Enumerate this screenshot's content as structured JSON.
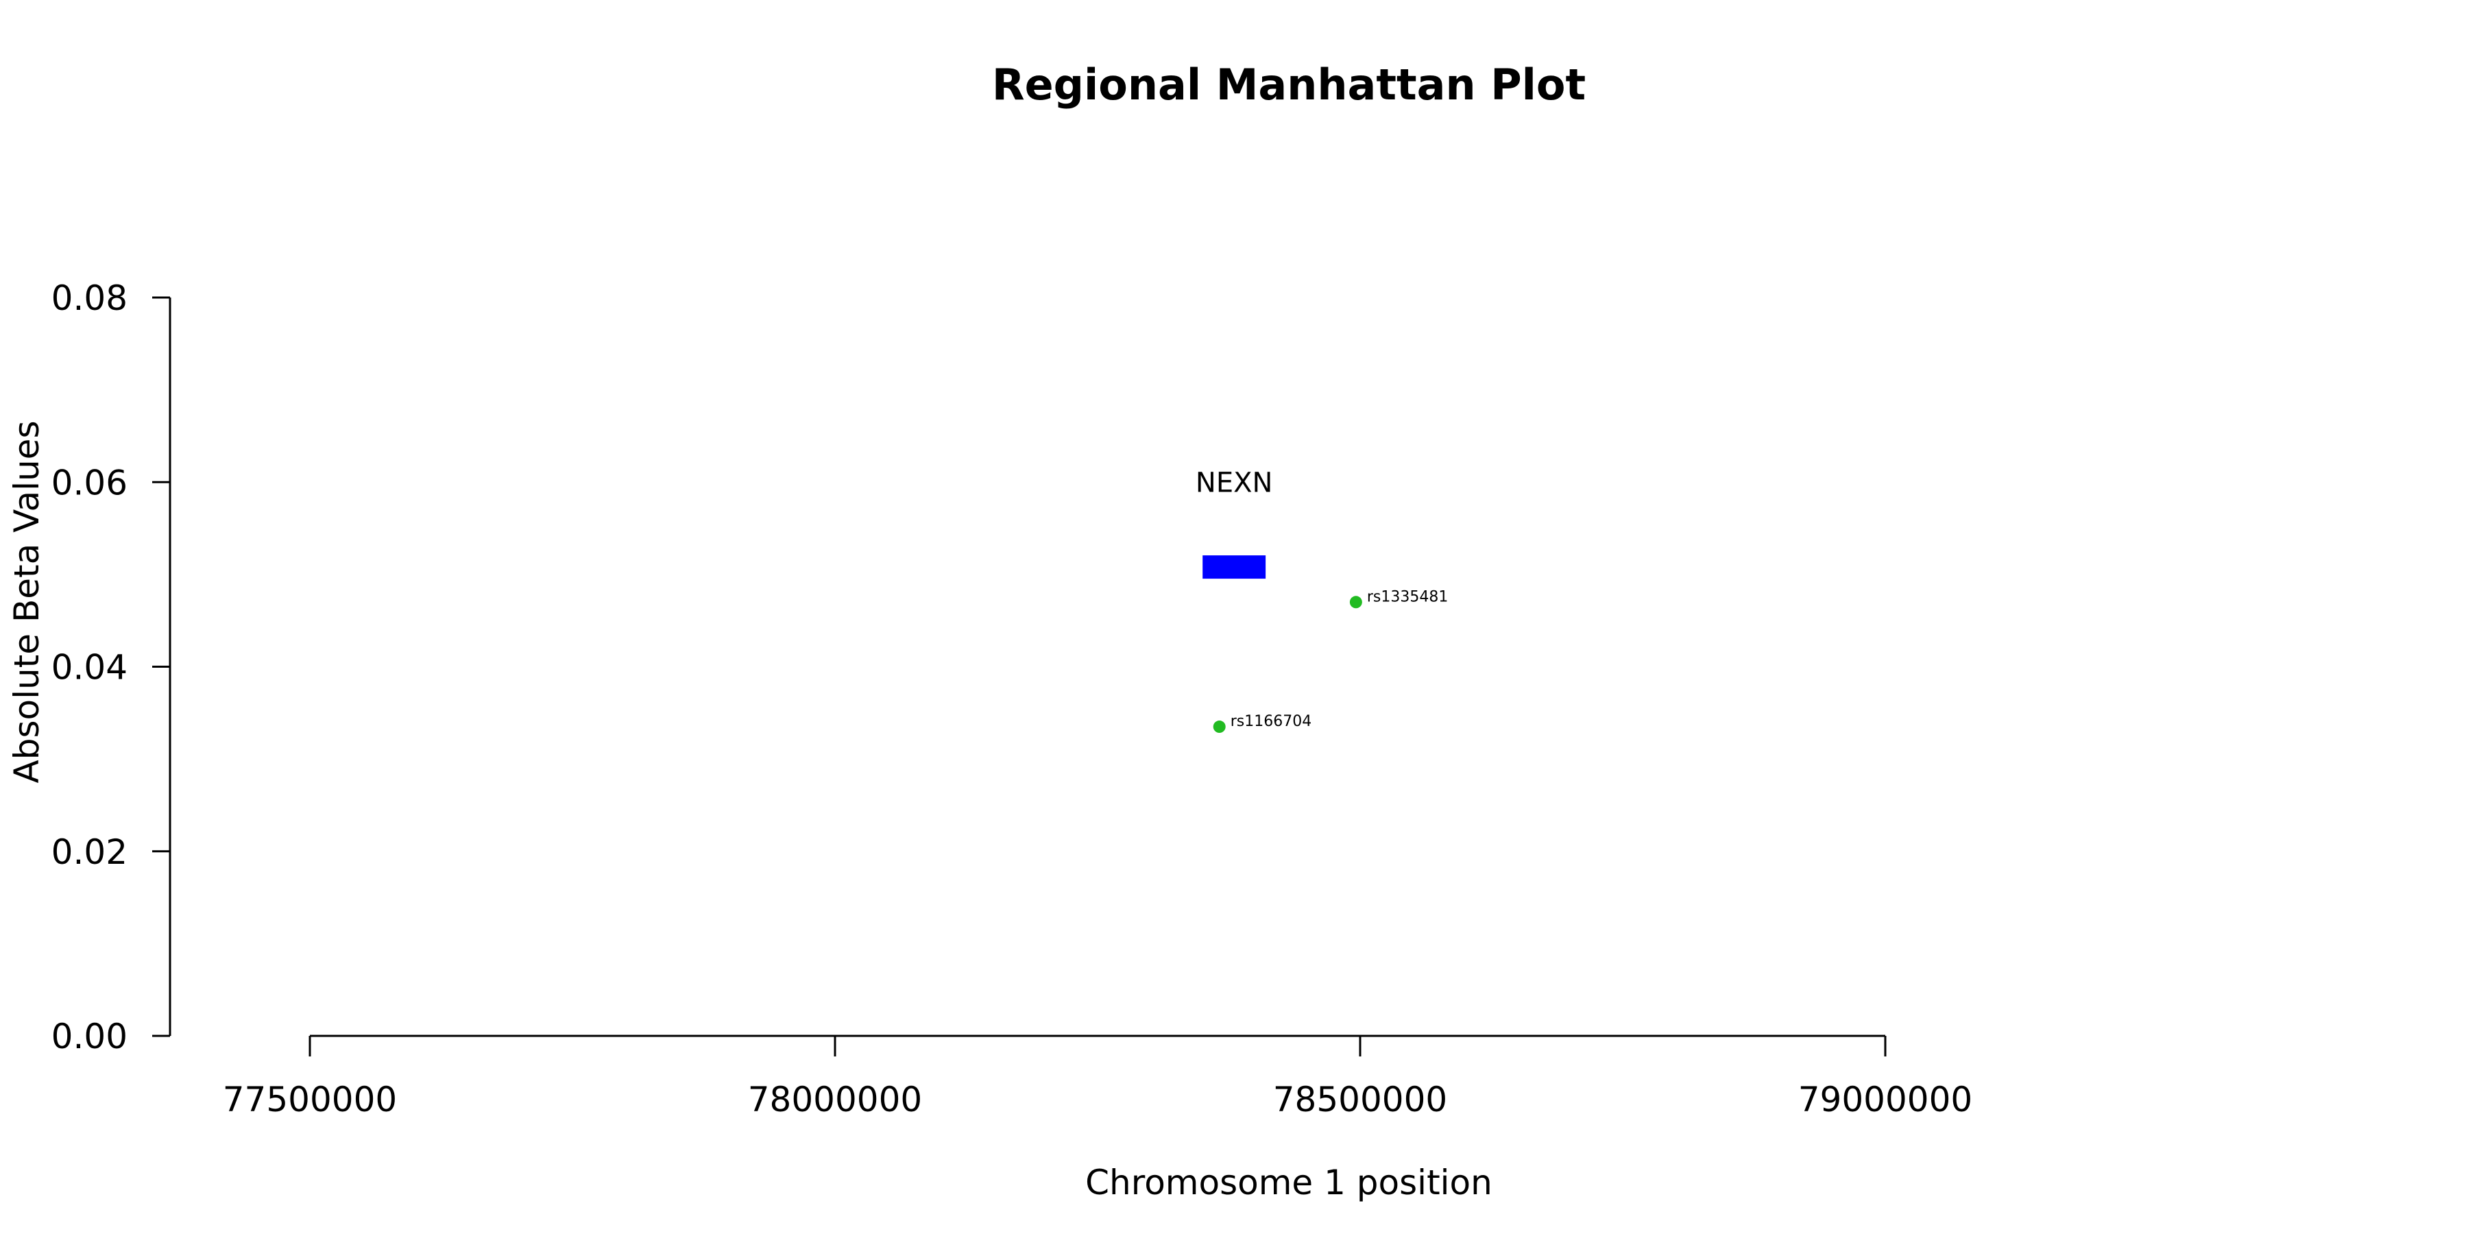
{
  "chart_data": {
    "type": "scatter",
    "title": "Regional Manhattan Plot",
    "xlabel": "Chromosome 1 position",
    "ylabel": "Absolute Beta Values",
    "xlim": [
      77500000,
      79000000
    ],
    "ylim": [
      0,
      0.08
    ],
    "x_ticks": [
      77500000,
      78000000,
      78500000,
      79000000
    ],
    "y_ticks": [
      "0.00",
      "0.02",
      "0.04",
      "0.06",
      "0.08"
    ],
    "grid": false,
    "legend": "none",
    "genes": [
      {
        "name": "NEXN",
        "start": 78350000,
        "end": 78410000,
        "y": 0.0508,
        "color": "#0000ff",
        "label_y": 0.06
      }
    ],
    "points": [
      {
        "label": "rs1335481",
        "x": 78496000,
        "y": 0.047,
        "color": "#22bb22"
      },
      {
        "label": "rs1166704",
        "x": 78366000,
        "y": 0.0335,
        "color": "#22bb22"
      }
    ]
  }
}
